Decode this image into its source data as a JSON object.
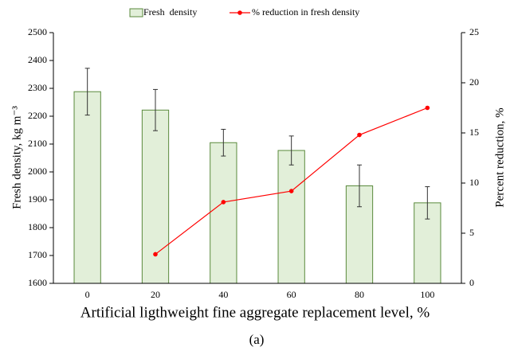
{
  "chart_data": {
    "type": "bar",
    "xlabel": "Artificial ligthweight fine aggregate replacement level, %",
    "ylabel": "Fresh density, kg m⁻³",
    "y2label": "Percent reduction, %",
    "caption": "(a)",
    "categories": [
      "0",
      "20",
      "40",
      "60",
      "80",
      "100"
    ],
    "series": [
      {
        "name": "Fresh  density",
        "type": "bar",
        "color": "#e2efd9",
        "edge_color": "#5a8a3c",
        "values": [
          2288,
          2222,
          2105,
          2077,
          1950,
          1889
        ],
        "errors": [
          84,
          74,
          48,
          52,
          75,
          58
        ]
      },
      {
        "name": "% reduction in fresh density",
        "type": "line",
        "color": "#ff0000",
        "axis": "y2",
        "values": [
          null,
          2.9,
          8.1,
          9.2,
          14.8,
          17.5
        ]
      }
    ],
    "ylim": [
      1600,
      2500
    ],
    "yticks": [
      1600,
      1700,
      1800,
      1900,
      2000,
      2100,
      2200,
      2300,
      2400,
      2500
    ],
    "y2lim": [
      0,
      25
    ],
    "y2ticks": [
      0,
      5,
      10,
      15,
      20,
      25
    ],
    "legend": "top"
  }
}
